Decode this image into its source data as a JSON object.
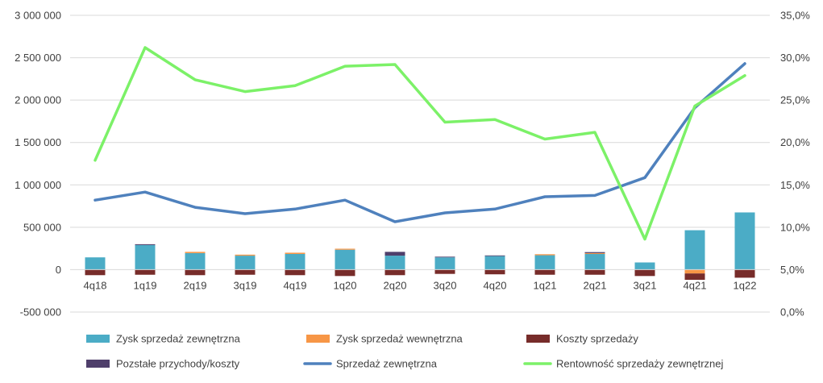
{
  "chart_data": {
    "type": "bar",
    "categories": [
      "4q18",
      "1q19",
      "2q19",
      "3q19",
      "4q19",
      "1q20",
      "2q20",
      "3q20",
      "4q20",
      "1q21",
      "2q21",
      "3q21",
      "4q21",
      "1q22"
    ],
    "left_axis": {
      "ylim": [
        -500000,
        3000000
      ],
      "ticks": [
        {
          "value": 3000000,
          "label": "3 000 000"
        },
        {
          "value": 2500000,
          "label": "2 500 000"
        },
        {
          "value": 2000000,
          "label": "2 000 000"
        },
        {
          "value": 1500000,
          "label": "1 500 000"
        },
        {
          "value": 1000000,
          "label": "1 000 000"
        },
        {
          "value": 500000,
          "label": "500 000"
        },
        {
          "value": 0,
          "label": "0"
        },
        {
          "value": -500000,
          "label": "-500 000"
        }
      ]
    },
    "right_axis": {
      "ylim": [
        0,
        35
      ],
      "ticks": [
        {
          "value": 35,
          "label": "35,0%"
        },
        {
          "value": 30,
          "label": "30,0%"
        },
        {
          "value": 25,
          "label": "25,0%"
        },
        {
          "value": 20,
          "label": "20,0%"
        },
        {
          "value": 15,
          "label": "15,0%"
        },
        {
          "value": 10,
          "label": "10,0%"
        },
        {
          "value": 5,
          "label": "5,0%"
        },
        {
          "value": 0,
          "label": "0,0%"
        }
      ]
    },
    "grid": true,
    "legend_position": "bottom",
    "series": [
      {
        "name": "Zysk sprzedaż zewnętrzna",
        "kind": "stacked-bar",
        "axis": "left",
        "color": "#4BACC6",
        "values": [
          145000,
          290000,
          195000,
          165000,
          185000,
          235000,
          165000,
          145000,
          160000,
          170000,
          185000,
          85000,
          465000,
          675000
        ]
      },
      {
        "name": "Zysk sprzedaż wewnętrzna",
        "kind": "stacked-bar",
        "axis": "left",
        "color": "#F79646",
        "values": [
          0,
          0,
          15000,
          12000,
          15000,
          12000,
          0,
          0,
          0,
          12000,
          10000,
          0,
          -45000,
          0
        ]
      },
      {
        "name": "Koszty sprzedaży",
        "kind": "stacked-bar",
        "axis": "left",
        "color": "#772C2A",
        "values": [
          -65000,
          -60000,
          -65000,
          -60000,
          -65000,
          -75000,
          -65000,
          -50000,
          -55000,
          -60000,
          -60000,
          -75000,
          -75000,
          -95000
        ]
      },
      {
        "name": "Pozstałe przychody/koszty",
        "kind": "stacked-bar",
        "axis": "left",
        "color": "#4F3F6B",
        "values": [
          0,
          10000,
          0,
          0,
          0,
          0,
          45000,
          8000,
          8000,
          0,
          12000,
          0,
          0,
          0
        ]
      },
      {
        "name": "Sprzedaż zewnętrzna",
        "kind": "line",
        "axis": "left",
        "color": "#4F81BD",
        "values": [
          820000,
          915000,
          735000,
          660000,
          715000,
          820000,
          565000,
          670000,
          715000,
          860000,
          875000,
          1085000,
          1910000,
          2430000
        ]
      },
      {
        "name": "Rentowność sprzedaży zewnętrznej",
        "kind": "line",
        "axis": "right",
        "color": "#7CF168",
        "values": [
          17.9,
          31.2,
          27.4,
          26.0,
          26.7,
          29.0,
          29.2,
          22.4,
          22.7,
          20.4,
          21.2,
          8.6,
          24.3,
          27.9
        ]
      }
    ]
  }
}
